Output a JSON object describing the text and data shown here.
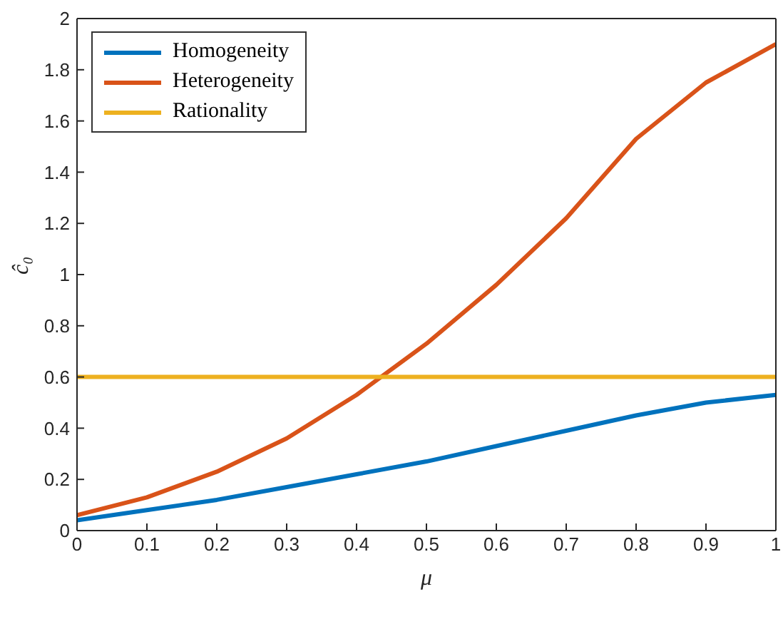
{
  "chart_data": {
    "type": "line",
    "xlabel": "μ",
    "ylabel": "ĉ₀",
    "x": [
      0,
      0.1,
      0.2,
      0.3,
      0.4,
      0.5,
      0.6,
      0.7,
      0.8,
      0.9,
      1
    ],
    "series": [
      {
        "name": "Homogeneity",
        "color": "#0072bd",
        "values": [
          0.04,
          0.08,
          0.12,
          0.17,
          0.22,
          0.27,
          0.33,
          0.39,
          0.45,
          0.5,
          0.53
        ]
      },
      {
        "name": "Heterogeneity",
        "color": "#d95319",
        "values": [
          0.06,
          0.13,
          0.23,
          0.36,
          0.53,
          0.73,
          0.96,
          1.22,
          1.53,
          1.75,
          1.9
        ]
      },
      {
        "name": "Rationality",
        "color": "#edb120",
        "values": [
          0.6,
          0.6,
          0.6,
          0.6,
          0.6,
          0.6,
          0.6,
          0.6,
          0.6,
          0.6,
          0.6
        ]
      }
    ],
    "xlim": [
      0,
      1
    ],
    "xticks": [
      0,
      0.1,
      0.2,
      0.3,
      0.4,
      0.5,
      0.6,
      0.7,
      0.8,
      0.9,
      1
    ],
    "ylim": [
      0,
      2
    ],
    "yticks": [
      0,
      0.2,
      0.4,
      0.6,
      0.8,
      1,
      1.2,
      1.4,
      1.6,
      1.8,
      2
    ],
    "grid": false,
    "legend": "top left",
    "marker": "none",
    "line_style": "solid"
  }
}
